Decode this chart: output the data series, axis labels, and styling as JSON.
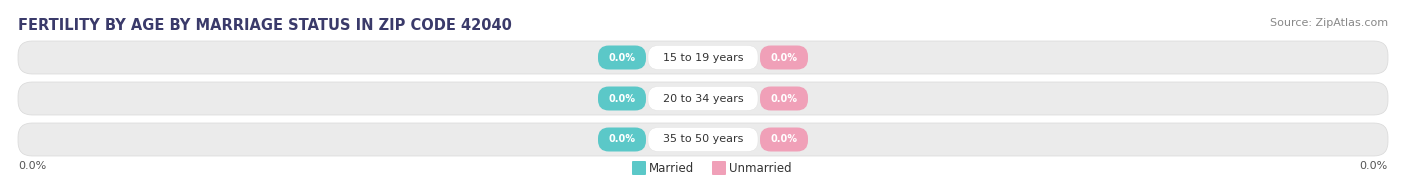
{
  "title": "FERTILITY BY AGE BY MARRIAGE STATUS IN ZIP CODE 42040",
  "source": "Source: ZipAtlas.com",
  "categories": [
    "15 to 19 years",
    "20 to 34 years",
    "35 to 50 years"
  ],
  "married_values": [
    0.0,
    0.0,
    0.0
  ],
  "unmarried_values": [
    0.0,
    0.0,
    0.0
  ],
  "married_color": "#5bc8c8",
  "unmarried_color": "#f0a0b8",
  "bar_bg_color": "#ebebeb",
  "bar_border_color": "#d8d8d8",
  "left_label": "0.0%",
  "right_label": "0.0%",
  "legend_married": "Married",
  "legend_unmarried": "Unmarried",
  "title_fontsize": 10.5,
  "source_fontsize": 8,
  "label_fontsize": 8,
  "background_color": "#ffffff",
  "title_color": "#3a3a6a",
  "source_color": "#888888",
  "axis_label_color": "#555555"
}
